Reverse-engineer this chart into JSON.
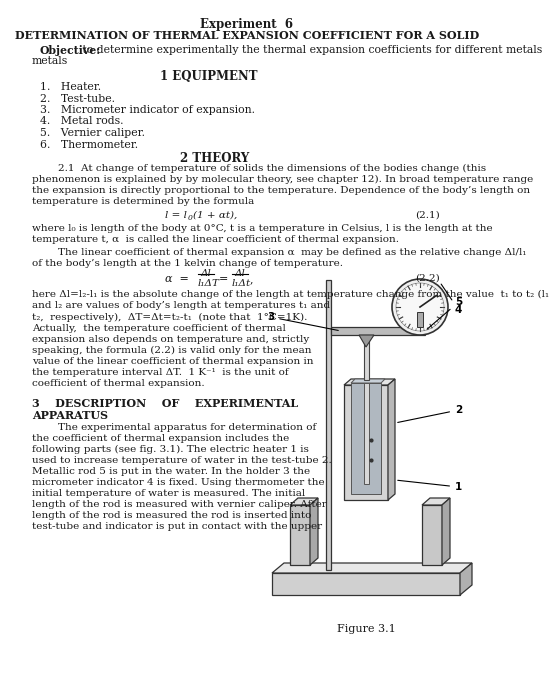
{
  "title1": "Experiment  6",
  "title2": "DETERMINATION OF THERMAL EXPANSION COEFFICIENT FOR A SOLID",
  "obj_bold": "Objective:",
  "obj_rest": " to determine experimentally the thermal expansion coefficients for different metals",
  "sec1": "1 EQUIPMENT",
  "equipment": [
    "Heater.",
    "Test-tube.",
    "Micrometer indicator of expansion.",
    "Metal rods.",
    "Vernier caliper.",
    "Thermometer."
  ],
  "sec2": "2 THEORY",
  "theory1": "        2.1  At change of temperature of solids the dimensions of the bodies change (this phenomenon is explained by by molecular theory, see chapter 12). In broad temperature range the expansion is directly proportional to the temperature. Dependence of the body’s length on temperature is determined by the formula",
  "formula1_lhs": "l = l",
  "formula1_rhs": "(1 + αt),",
  "formula1_num": "(2.1)",
  "theory2a": "where l",
  "theory2a2": " is length of the body at 0°C, t is a temperature in Celsius, l is the length at the temperature t, α  is called the linear coefficient of thermal expansion.",
  "theory2b": "        The linear coefficient of thermal expansion α  may be defined as the relative change Δl/l",
  "theory2b2": "\nof the body’s length at the 1 kelvin change of temperature.",
  "formula2_num": "(2.2)",
  "theory3a": "here Δl=l",
  "theory3a2": "-l",
  "theory3a3": " is the absolute change of the length at temperature change from the value  t",
  "theory3a4": " to t",
  "theory3a5": " (l",
  "theory3a6": "\nand l",
  "theory3a7": " are values of body’s length at temperatures t",
  "theory3a8": " and",
  "theory3b_left": "t",
  "theory3b_rest": ",  respectively),  ΔT=Δt=t",
  "theory3b_rest2": "-t",
  "theory3b_rest3": "  (note that  1°C=1K).\nActually,  the temperature coefficient of thermal\nexpansion also depends on temperature and, strictly\nspeaking, the formula (2.2) is valid only for the mean\nvalue of the linear coefficient of thermal expansion in\nthe temperature interval ΔT.  1 K",
  "theory3b_rest4": "  is the unit of\ncoefficient of thermal expansion.",
  "sec3": "3    DESCRIPTION    OF    EXPERIMENTAL APPARATUS",
  "apparatus": "        The experimental apparatus for determination of\nthe coefficient of thermal expansion includes the\nfollowing parts (see fig. 3.1). The electric heater 1 is\nused to increase temperature of water in the test-tube 2.\nMetallic rod 5 is put in the water. In the holder 3 the\nmicrometer indicator 4 is fixed. Using thermometer the\ninitial temperature of water is measured. The initial\nlength of the rod is measured with vernier caliper. After\nlength of the rod is measured the rod is inserted into\ntest-tube and indicator is put in contact with the upper",
  "fig_caption": "Figure 3.1",
  "bg": "#ffffff",
  "fg": "#1a1a1a",
  "gray1": "#888888",
  "gray2": "#aaaaaa",
  "gray3": "#cccccc",
  "gray4": "#dddddd"
}
